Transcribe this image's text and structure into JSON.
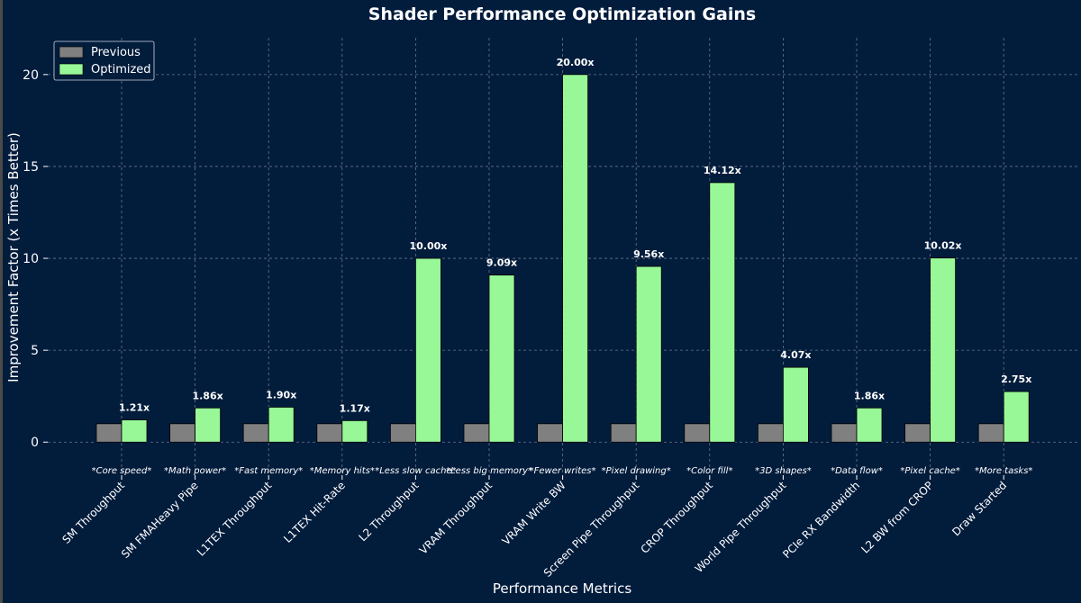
{
  "chart_data": {
    "type": "bar",
    "title": "Shader Performance Optimization Gains",
    "xlabel": "Performance Metrics",
    "ylabel": "Improvement Factor (x Times Better)",
    "ylim": [
      -1.8,
      22
    ],
    "yticks": [
      0,
      5,
      10,
      15,
      20
    ],
    "grid": true,
    "legend_position": "top-left",
    "categories": [
      "SM Throughput",
      "SM FMAHeavy Pipe",
      "L1TEX Throughput",
      "L1TEX Hit-Rate",
      "L2 Throughput",
      "VRAM Throughput",
      "VRAM Write BW",
      "Screen Pipe Throughput",
      "CROP Throughput",
      "World Pipe Throughput",
      "PCIe RX Bandwidth",
      "L2 BW from CROP",
      "Draw Started"
    ],
    "annotations": [
      "*Core speed*",
      "*Math power*",
      "*Fast memory*",
      "*Memory hits*",
      "*Less slow cache*",
      "*Less big memory*",
      "*Fewer writes*",
      "*Pixel drawing*",
      "*Color fill*",
      "*3D shapes*",
      "*Data flow*",
      "*Pixel cache*",
      "*More tasks*"
    ],
    "series": [
      {
        "name": "Previous",
        "color": "#808080",
        "values": [
          1,
          1,
          1,
          1,
          1,
          1,
          1,
          1,
          1,
          1,
          1,
          1,
          1
        ]
      },
      {
        "name": "Optimized",
        "color": "#98f898",
        "values": [
          1.21,
          1.86,
          1.9,
          1.17,
          10.0,
          9.09,
          20.0,
          9.56,
          14.12,
          4.07,
          1.86,
          10.02,
          2.75
        ],
        "labels": [
          "1.21x",
          "1.86x",
          "1.90x",
          "1.17x",
          "10.00x",
          "9.09x",
          "20.00x",
          "9.56x",
          "14.12x",
          "4.07x",
          "1.86x",
          "10.02x",
          "2.75x"
        ]
      }
    ],
    "colors": {
      "background": "#021c3c",
      "text": "#ffffff",
      "bar_edge": "#000000"
    }
  }
}
